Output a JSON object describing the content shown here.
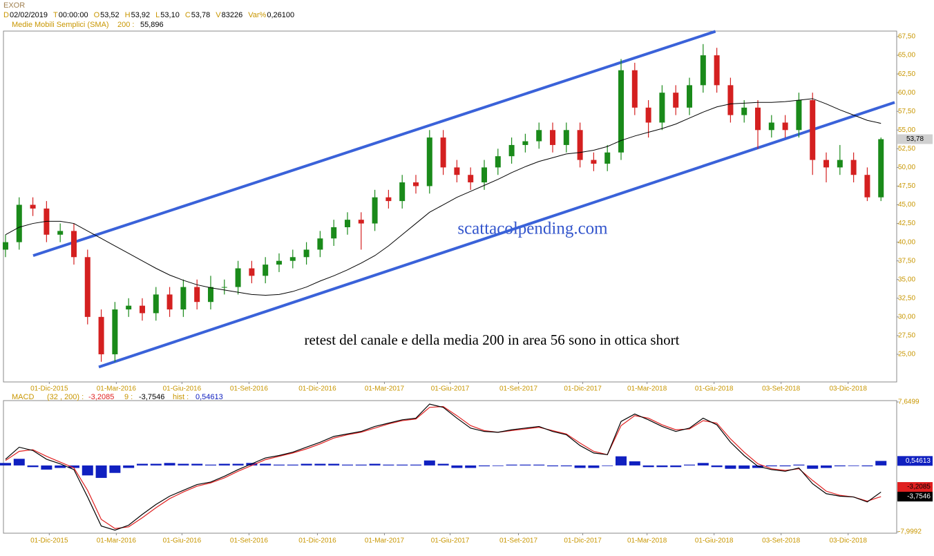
{
  "header": {
    "symbol": "EXOR",
    "fields": [
      {
        "label": "D",
        "value": "02/02/2019"
      },
      {
        "label": "T",
        "value": "00:00:00"
      },
      {
        "label": "O",
        "value": "53,52"
      },
      {
        "label": "H",
        "value": "53,92"
      },
      {
        "label": "L",
        "value": "53,10"
      },
      {
        "label": "C",
        "value": "53,78"
      },
      {
        "label": "V",
        "value": "83226"
      },
      {
        "label": "Var%",
        "value": "0,26100"
      }
    ],
    "sma_label": "Medie Mobili Semplici (SMA)",
    "sma_period": "200 :",
    "sma_value": "55,896"
  },
  "chart_data": [
    {
      "type": "candlestick",
      "xlim": [
        -0.15,
        65.15
      ],
      "xticks": [
        {
          "value": 3.2,
          "label": "01-Dic-2015"
        },
        {
          "value": 8.1,
          "label": "01-Mar-2016"
        },
        {
          "value": 12.9,
          "label": "01-Giu-2016"
        },
        {
          "value": 17.8,
          "label": "01-Set-2016"
        },
        {
          "value": 22.8,
          "label": "01-Dic-2016"
        },
        {
          "value": 27.7,
          "label": "01-Mar-2017"
        },
        {
          "value": 32.5,
          "label": "01-Giu-2017"
        },
        {
          "value": 37.5,
          "label": "01-Set-2017"
        },
        {
          "value": 42.2,
          "label": "01-Dic-2017"
        },
        {
          "value": 46.9,
          "label": "01-Mar-2018"
        },
        {
          "value": 51.8,
          "label": "01-Giu-2018"
        },
        {
          "value": 56.7,
          "label": "03-Set-2018"
        },
        {
          "value": 61.6,
          "label": "03-Dic-2018"
        }
      ],
      "ylim": [
        21.3,
        68.24
      ],
      "yticks": [
        {
          "value": 25,
          "label": "25,00"
        },
        {
          "value": 27.5,
          "label": "27,50"
        },
        {
          "value": 30,
          "label": "30,00"
        },
        {
          "value": 32.5,
          "label": "32,50"
        },
        {
          "value": 35,
          "label": "35,00"
        },
        {
          "value": 37.5,
          "label": "37,50"
        },
        {
          "value": 40,
          "label": "40,00"
        },
        {
          "value": 42.5,
          "label": "42,50"
        },
        {
          "value": 45,
          "label": "45,00"
        },
        {
          "value": 47.5,
          "label": "47,50"
        },
        {
          "value": 50,
          "label": "50,00"
        },
        {
          "value": 52.5,
          "label": "52,50"
        },
        {
          "value": 55,
          "label": "55,00"
        },
        {
          "value": 57.5,
          "label": "57,50"
        },
        {
          "value": 60,
          "label": "60,00"
        },
        {
          "value": 62.5,
          "label": "62,50"
        },
        {
          "value": 65,
          "label": "65,00"
        },
        {
          "value": 67.5,
          "label": "67,50"
        }
      ],
      "up_color": "#1a8a1a",
      "down_color": "#d42020",
      "open": [
        39,
        40,
        45,
        44.5,
        41,
        41.5,
        38,
        30,
        25,
        31,
        31.5,
        30.5,
        33,
        31,
        34,
        32,
        34,
        34,
        36.5,
        35.5,
        37,
        37.5,
        38,
        39,
        40.5,
        42,
        43,
        42.5,
        46,
        45.5,
        48,
        47.5,
        54,
        50,
        49,
        48,
        50,
        51.5,
        53,
        53.5,
        55,
        53,
        55,
        51,
        50.5,
        52,
        63,
        58,
        56,
        60,
        58,
        61,
        65,
        61,
        57,
        58,
        55,
        56,
        55,
        59,
        51,
        50,
        51,
        49,
        46
      ],
      "high": [
        41,
        46,
        46,
        45.5,
        42.5,
        42.5,
        39,
        31,
        32,
        32.5,
        32.5,
        34,
        34,
        35,
        35,
        35.5,
        35,
        37.5,
        37.5,
        38,
        38.5,
        39,
        40,
        41.5,
        43,
        44,
        44,
        47,
        47,
        49,
        49,
        55,
        55,
        51,
        50,
        51,
        52.5,
        54,
        54.5,
        56,
        56,
        56,
        56,
        52,
        53,
        64.5,
        64,
        59,
        61,
        61,
        62,
        66.5,
        66,
        62,
        59,
        59,
        57,
        57,
        60,
        60,
        52,
        53,
        52,
        50,
        54
      ],
      "low": [
        38,
        39,
        43.5,
        40,
        40,
        37,
        29,
        24,
        24,
        30,
        29.5,
        29.5,
        30,
        30,
        31,
        31,
        33,
        33,
        34.5,
        34.5,
        36,
        36.5,
        37,
        38,
        39.5,
        41,
        39,
        41.5,
        44.5,
        44.5,
        46.5,
        46.5,
        49,
        48,
        47,
        47,
        49,
        50.5,
        52,
        52.5,
        52,
        52,
        50,
        49.5,
        49.5,
        51,
        57,
        54,
        55,
        57,
        57,
        60,
        60,
        56,
        56,
        52.5,
        54,
        54,
        54,
        49,
        48,
        49,
        48,
        45.5,
        45.5
      ],
      "close": [
        40,
        45,
        44.5,
        41,
        41.5,
        38,
        30,
        25,
        31,
        31.5,
        30.5,
        33,
        31,
        34,
        32,
        34,
        34,
        36.5,
        35.5,
        37,
        37.5,
        38,
        39,
        40.5,
        42,
        43,
        42.5,
        46,
        45.5,
        48,
        47.5,
        54,
        50,
        49,
        48,
        50,
        51.5,
        53,
        53.5,
        55,
        53,
        55,
        51,
        50.5,
        52,
        63,
        58,
        56,
        60,
        58,
        61,
        65,
        61,
        57,
        58,
        55,
        56,
        55,
        59,
        51,
        50,
        51,
        49,
        46,
        53.78
      ],
      "last_label": "53,78",
      "sma": {
        "color": "#000000",
        "values": [
          41,
          42,
          42.5,
          42.8,
          42.8,
          42.5,
          41.5,
          40.5,
          39.5,
          38.5,
          37.5,
          36.5,
          35.6,
          34.9,
          34.3,
          33.9,
          33.6,
          33.3,
          33,
          32.9,
          33,
          33.4,
          34,
          34.8,
          35.5,
          36.3,
          37.2,
          38.2,
          39.5,
          41,
          42.5,
          44,
          45,
          46,
          46.8,
          47.6,
          48.4,
          49.3,
          50.1,
          50.8,
          51.3,
          51.8,
          52,
          52.3,
          52.8,
          53.6,
          54.2,
          54.7,
          55.2,
          55.8,
          56.6,
          57.4,
          58.1,
          58.5,
          58.6,
          58.7,
          58.7,
          58.8,
          59,
          59.2,
          58.5,
          57.7,
          57,
          56.3,
          55.896
        ]
      },
      "trendlines": {
        "color": "#3a62d9",
        "lines": [
          {
            "x": [
              2.02,
              51.9
            ],
            "y": [
              38.2,
              68.2
            ]
          },
          {
            "x": [
              6.82,
              65.0
            ],
            "y": [
              23.3,
              58.7
            ]
          }
        ]
      },
      "watermark": "scattacolpending.com",
      "annotation": "retest del canale e della media 200 in area 56 sono in ottica short"
    },
    {
      "type": "macd",
      "title": "MACD",
      "params": "(32 , 200) :",
      "signal_param": "9 :",
      "hist_label": "hist :",
      "xlim": [
        -0.15,
        65.15
      ],
      "xticks": [
        {
          "value": 3.2,
          "label": "01-Dic-2015"
        },
        {
          "value": 8.1,
          "label": "01-Mar-2016"
        },
        {
          "value": 12.9,
          "label": "01-Giu-2016"
        },
        {
          "value": 17.8,
          "label": "01-Set-2016"
        },
        {
          "value": 22.8,
          "label": "01-Dic-2016"
        },
        {
          "value": 27.7,
          "label": "01-Mar-2017"
        },
        {
          "value": 32.5,
          "label": "01-Giu-2017"
        },
        {
          "value": 37.5,
          "label": "01-Set-2017"
        },
        {
          "value": 42.2,
          "label": "01-Dic-2017"
        },
        {
          "value": 46.9,
          "label": "01-Mar-2018"
        },
        {
          "value": 51.8,
          "label": "01-Giu-2018"
        },
        {
          "value": 56.7,
          "label": "03-Set-2018"
        },
        {
          "value": 61.6,
          "label": "03-Dic-2018"
        }
      ],
      "ylim": [
        -7.9992,
        7.6499
      ],
      "yticks": [
        {
          "value": 7.6499,
          "label": "7,6499"
        },
        {
          "value": -7.9992,
          "label": "-7,9992"
        }
      ],
      "macd": {
        "color": "#000000",
        "value_label": "-3,2085",
        "values": [
          0.75,
          2.2,
          1.8,
          0.75,
          0.2,
          -0.5,
          -3.8,
          -7.3,
          -7.8,
          -7.2,
          -5.9,
          -4.7,
          -3.7,
          -3,
          -2.3,
          -2,
          -1.3,
          -0.5,
          0.2,
          0.9,
          1.2,
          1.6,
          2.2,
          2.8,
          3.5,
          3.8,
          4.1,
          4.7,
          5.1,
          5.5,
          5.7,
          7.4,
          7,
          5.7,
          4.5,
          4.1,
          4,
          4.3,
          4.5,
          4.7,
          4.1,
          3.7,
          2.4,
          1.5,
          1.3,
          5.3,
          6.2,
          5.5,
          4.7,
          4.1,
          4.5,
          5.7,
          4.9,
          2.8,
          1.2,
          -0.1,
          -0.5,
          -0.7,
          -0.3,
          -2.2,
          -3.4,
          -3.7,
          -3.8,
          -4.4,
          -3.2085
        ]
      },
      "signal": {
        "color": "#e02020",
        "value_label": "-3,7546",
        "values": [
          0.6,
          1.7,
          1.9,
          1.1,
          0.4,
          -0.3,
          -3,
          -6.5,
          -7.6,
          -7.4,
          -6.3,
          -5.1,
          -4,
          -3.2,
          -2.5,
          -2.1,
          -1.5,
          -0.7,
          0,
          0.7,
          1.1,
          1.5,
          2,
          2.6,
          3.3,
          3.7,
          4,
          4.5,
          5,
          5.4,
          5.6,
          7,
          7.1,
          6,
          4.8,
          4.2,
          4,
          4.2,
          4.4,
          4.6,
          4.2,
          3.8,
          2.7,
          1.7,
          1.3,
          4.8,
          6,
          5.7,
          4.9,
          4.3,
          4.4,
          5.4,
          5.1,
          3.2,
          1.6,
          0.2,
          -0.4,
          -0.6,
          -0.4,
          -1.8,
          -3.1,
          -3.6,
          -3.8,
          -4.3,
          -3.7546
        ]
      },
      "hist": {
        "color": "#1020c0",
        "value_label": "0,54613",
        "values": [
          0.3,
          0.8,
          -0.2,
          -0.5,
          -0.3,
          -0.3,
          -1.2,
          -1.5,
          -0.9,
          -0.3,
          0.2,
          0.2,
          0.3,
          0.2,
          0.2,
          0.1,
          0.2,
          0.2,
          0.3,
          0.2,
          0.1,
          0.1,
          0.2,
          0.2,
          0.2,
          0.1,
          0.1,
          0.2,
          0.1,
          0.1,
          0.1,
          0.6,
          0.2,
          -0.3,
          -0.3,
          -0.1,
          0,
          0.1,
          0.1,
          0.1,
          -0.1,
          -0.1,
          -0.3,
          -0.3,
          0,
          1.1,
          0.5,
          -0.2,
          -0.2,
          -0.2,
          0.1,
          0.3,
          -0.2,
          -0.4,
          -0.4,
          -0.3,
          -0.1,
          -0.1,
          0.1,
          -0.4,
          -0.3,
          -0.1,
          0,
          -0.1,
          0.54613
        ]
      }
    }
  ]
}
